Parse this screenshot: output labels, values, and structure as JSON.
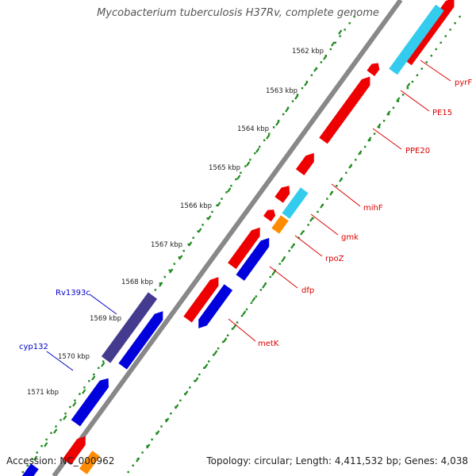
{
  "title": "Mycobacterium tuberculosis H37Rv, complete genome",
  "accession": "Accession: NC_000962",
  "topology": "Topology: circular; Length: 4,411,532 bp; Genes: 4,038",
  "colors": {
    "backbone": "#888888",
    "ruler_ticks": "#1f8a1f",
    "forward_gene": "#ee0000",
    "forward_gene_light": "#33ccee",
    "forward_gene_orange": "#ff8c00",
    "reverse_gene": "#0000dd",
    "reverse_gene_dark": "#443b8f",
    "forward_label": "#dd0000",
    "reverse_label": "#0000cc"
  },
  "ruler": {
    "ticks": [
      {
        "label": "1562 kbp"
      },
      {
        "label": "1563 kbp"
      },
      {
        "label": "1564 kbp"
      },
      {
        "label": "1565 kbp"
      },
      {
        "label": "1566 kbp"
      },
      {
        "label": "1567 kbp"
      },
      {
        "label": "1568 kbp"
      },
      {
        "label": "1569 kbp"
      },
      {
        "label": "1570 kbp"
      },
      {
        "label": "1571 kbp"
      }
    ]
  },
  "genes": {
    "forward_labels": [
      {
        "name": "pyrF"
      },
      {
        "name": "PE15"
      },
      {
        "name": "PPE20"
      },
      {
        "name": "mihF"
      },
      {
        "name": "gmk"
      },
      {
        "name": "rpoZ"
      },
      {
        "name": "dfp"
      },
      {
        "name": "metK"
      }
    ],
    "reverse_labels": [
      {
        "name": "Rv1393c"
      },
      {
        "name": "cyp132"
      }
    ]
  }
}
